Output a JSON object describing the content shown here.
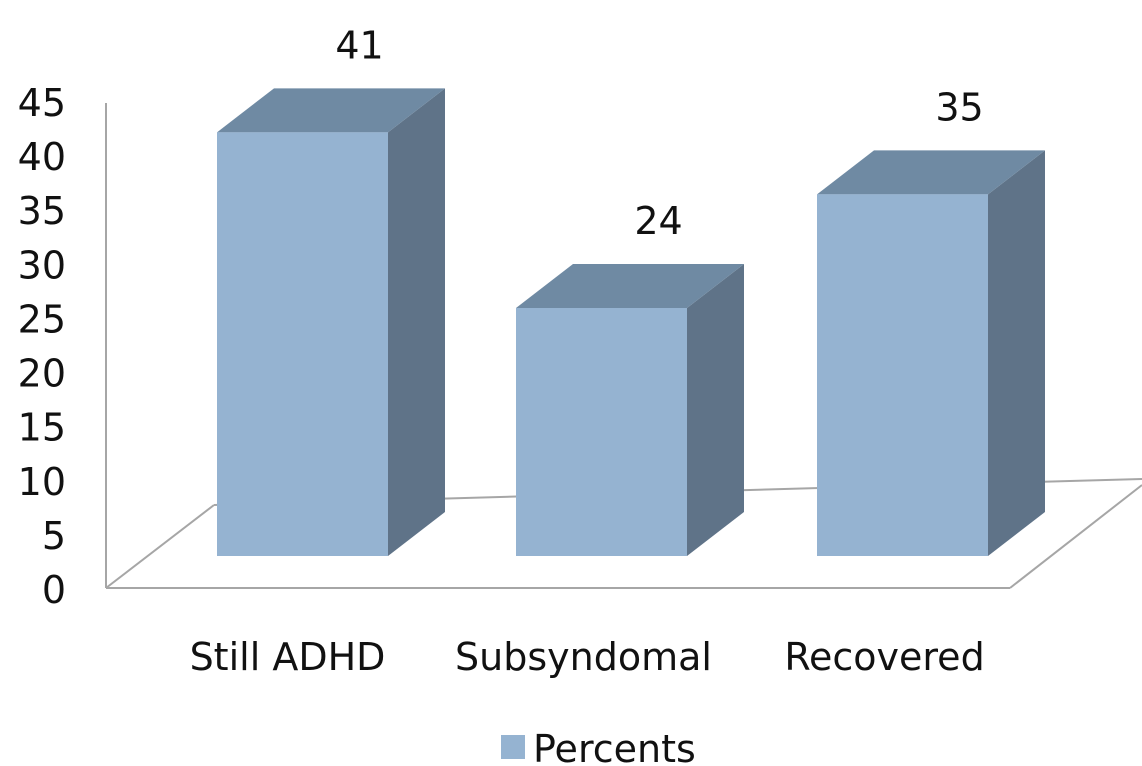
{
  "chart_data": {
    "type": "bar",
    "style": "3d",
    "categories": [
      "Still ADHD",
      "Subsyndomal",
      "Recovered"
    ],
    "series": [
      {
        "name": "Percents",
        "values": [
          41,
          24,
          35
        ]
      }
    ],
    "yticks": [
      "0",
      "5",
      "10",
      "15",
      "20",
      "25",
      "30",
      "35",
      "40",
      "45"
    ],
    "ylim": [
      0,
      45
    ],
    "data_labels": [
      "41",
      "24",
      "35"
    ],
    "grid": false,
    "legend": "bottom",
    "colors": {
      "front": "#95b3d1",
      "top": "#6f8aa3",
      "side": "#5f7388",
      "axis": "#a6a6a6"
    }
  }
}
